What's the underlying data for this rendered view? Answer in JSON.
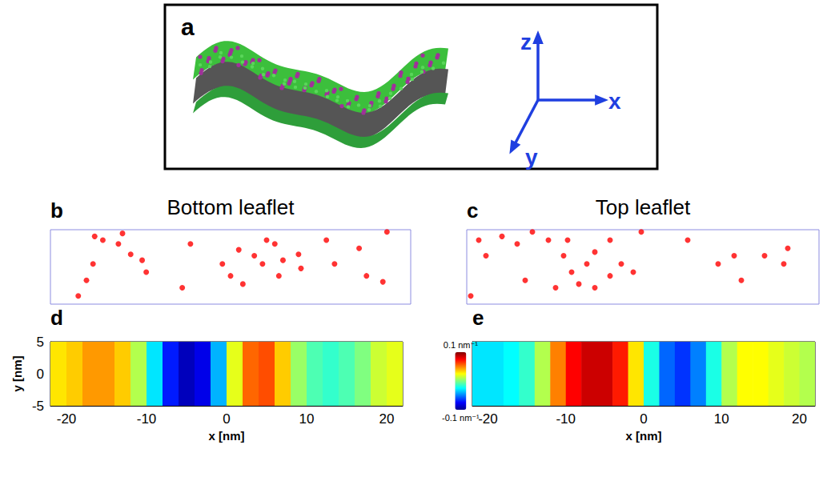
{
  "illustration": {
    "panel": "a",
    "axis_labels": [
      "z",
      "x",
      "y"
    ]
  },
  "colorbar": {
    "range": [
      -0.1,
      0.1
    ],
    "ticks": [
      {
        "value": 0.1,
        "label": "0.1 nm⁻¹"
      },
      {
        "value": -0.1,
        "label": "-0.1 nm⁻¹"
      }
    ]
  },
  "chart_data": [
    {
      "type": "scatter",
      "panel": "b",
      "title": "Bottom leaflet",
      "color": "#ff0000",
      "marker": "circle",
      "tick_labels": false,
      "xlim": [
        -22,
        22
      ],
      "ylim": [
        -5,
        5
      ],
      "x": [
        -16.6,
        -15.6,
        -13.2,
        -13.7,
        -12.2,
        -10.8,
        -16.8,
        -17.6,
        -10.3,
        -5.9,
        -1.0,
        0.0,
        1.0,
        2.9,
        3.9,
        4.4,
        5.4,
        6.4,
        8.3,
        8.6,
        5.9,
        1.5,
        11.7,
        15.7,
        16.6,
        18.6,
        12.7,
        -18.6,
        -4.9,
        19.1
      ],
      "y": [
        4.1,
        3.6,
        4.5,
        3.1,
        1.7,
        0.9,
        0.4,
        -1.8,
        -0.7,
        -2.8,
        0.4,
        -1.2,
        2.3,
        1.5,
        0.4,
        3.6,
        3.1,
        0.9,
        1.7,
        -0.2,
        -1.2,
        -2.3,
        3.6,
        2.5,
        -1.2,
        -2.0,
        0.4,
        -3.9,
        3.1,
        4.7
      ]
    },
    {
      "type": "scatter",
      "panel": "c",
      "title": "Top leaflet",
      "color": "#ff0000",
      "marker": "circle",
      "tick_labels": false,
      "xlim": [
        -22,
        22
      ],
      "ylim": [
        -5,
        5
      ],
      "x": [
        -20.5,
        -19.6,
        -17.6,
        -15.7,
        -13.8,
        -11.8,
        -9.9,
        -8.9,
        -8.0,
        -9.4,
        -7.0,
        -6.0,
        -4.1,
        -2.7,
        -1.2,
        -0.2,
        -14.7,
        -10.9,
        5.6,
        9.4,
        11.4,
        12.3,
        15.2,
        18.1,
        17.6,
        -4.1,
        -6.0,
        -21.5
      ],
      "y": [
        3.6,
        1.5,
        4.1,
        3.1,
        4.7,
        3.6,
        1.5,
        -0.7,
        -2.3,
        3.6,
        0.4,
        2.0,
        -1.2,
        0.4,
        -0.7,
        4.7,
        -1.8,
        -2.8,
        3.6,
        0.4,
        1.5,
        -1.8,
        1.5,
        2.5,
        0.4,
        3.6,
        -2.8,
        -3.9
      ]
    },
    {
      "type": "heatmap",
      "panel": "d",
      "xlabel": "x [nm]",
      "ylabel": "y [nm]",
      "xlim": [
        -22,
        22
      ],
      "ylim": [
        -5,
        5
      ],
      "xticks": [
        -20,
        -10,
        0,
        10,
        20
      ],
      "yticks": [
        -5,
        0,
        5
      ],
      "bins": [
        -22,
        -20,
        -18,
        -16,
        -14,
        -12,
        -10,
        -8,
        -6,
        -4,
        -2,
        0,
        2,
        4,
        6,
        8,
        10,
        12,
        14,
        16,
        18,
        20,
        22
      ],
      "values": [
        0.03,
        0.035,
        0.045,
        0.045,
        0.035,
        0.01,
        -0.03,
        -0.07,
        -0.09,
        -0.08,
        -0.04,
        0.02,
        0.055,
        0.06,
        0.035,
        0.005,
        -0.01,
        -0.015,
        -0.01,
        0.0,
        0.015,
        0.02
      ]
    },
    {
      "type": "heatmap",
      "panel": "e",
      "xlabel": "x [nm]",
      "tick_labels": "x",
      "xlim": [
        -22,
        22
      ],
      "ylim": [
        -5,
        5
      ],
      "xticks": [
        -20,
        -10,
        0,
        10,
        20
      ],
      "bins": [
        -22,
        -20,
        -18,
        -16,
        -14,
        -12,
        -10,
        -8,
        -6,
        -4,
        -2,
        0,
        2,
        4,
        6,
        8,
        10,
        12,
        14,
        16,
        18,
        20,
        22
      ],
      "values": [
        -0.03,
        -0.03,
        -0.025,
        -0.015,
        0.01,
        0.05,
        0.075,
        0.085,
        0.085,
        0.07,
        0.03,
        -0.02,
        -0.055,
        -0.065,
        -0.05,
        -0.02,
        0.01,
        0.025,
        0.025,
        0.02,
        0.015,
        0.01
      ]
    }
  ]
}
